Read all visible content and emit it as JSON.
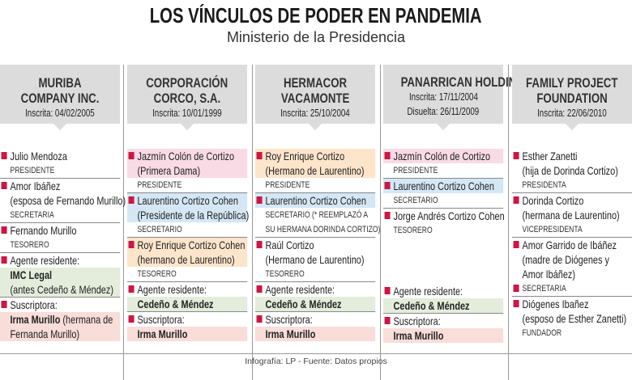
{
  "title": "LOS VÍNCULOS DE PODER EN PANDEMIA",
  "subtitle": "Ministerio de la Presidencia",
  "footer": "Infografía: LP - Fuente: Datos propios",
  "colors": {
    "bullet": "#cc1744",
    "pink": "#f9dbe6",
    "blue": "#d5e7f5",
    "orange": "#fde5cb",
    "green": "#e4ecdb",
    "rose": "#f8ddd9",
    "header": "#dcdcdc"
  },
  "columns": [
    {
      "name": [
        "MURIBA",
        "COMPANY INC."
      ],
      "dates": [
        "Inscrita: 04/02/2005"
      ],
      "lines": [
        {
          "t": "Julio Mendoza",
          "bullet": true
        },
        {
          "t": "PRESIDENTE",
          "role": true,
          "sep": true
        },
        {
          "t": "Amor Ibáñez",
          "bullet": true
        },
        {
          "t": "(esposa de Fernando Murillo)"
        },
        {
          "t": "SECRETARIA",
          "role": true,
          "sep": true
        },
        {
          "t": "Fernando Murillo",
          "bullet": true
        },
        {
          "t": "TESORERO",
          "role": true,
          "sep": true
        },
        {
          "t": "Agente residente:",
          "bullet": true
        },
        {
          "t": "IMC Legal",
          "bold": true,
          "bg": "green"
        },
        {
          "t": "(antes Cedeño & Méndez)",
          "bg": "green",
          "sep": true
        },
        {
          "t": "Suscriptora:",
          "bullet": true
        },
        {
          "t": "Irma Murillo",
          "rest": " (hermana de",
          "bold": true,
          "bg": "rose"
        },
        {
          "t": "Fernanda Murillo)",
          "bg": "rose"
        }
      ]
    },
    {
      "name": [
        "CORPORACIÓN",
        "CORCO, S.A."
      ],
      "dates": [
        "Inscrita: 10/01/1999"
      ],
      "lines": [
        {
          "t": "Jazmín Colón de Cortizo",
          "bullet": true,
          "bg": "pink"
        },
        {
          "t": "(Primera Dama)",
          "bg": "pink"
        },
        {
          "t": "PRESIDENTE",
          "role": true,
          "sep": true
        },
        {
          "t": "Laurentino Cortizo Cohen",
          "bullet": true,
          "bg": "blue"
        },
        {
          "t": "(Presidente de la República)",
          "bg": "blue"
        },
        {
          "t": "SECRETARIO",
          "role": true,
          "sep": true
        },
        {
          "t": "Roy Enrique Cortizo Cohen",
          "bullet": true,
          "bg": "orange"
        },
        {
          "t": "(hermano de Laurentino)",
          "bg": "orange"
        },
        {
          "t": "TESORERO",
          "role": true,
          "sep": true
        },
        {
          "t": "Agente residente:",
          "bullet": true
        },
        {
          "t": "Cedeño & Méndez",
          "bold": true,
          "bg": "green",
          "sep": true
        },
        {
          "t": "Suscriptora:",
          "bullet": true
        },
        {
          "t": "Irma Murillo",
          "bold": true,
          "bg": "rose"
        }
      ]
    },
    {
      "name": [
        "HERMACOR",
        "VACAMONTE"
      ],
      "dates": [
        "Inscrita: 25/10/2004"
      ],
      "lines": [
        {
          "t": "Roy Enrique Cortizo",
          "bullet": true,
          "bg": "orange"
        },
        {
          "t": "(Hermano de Laurentino)",
          "bg": "orange"
        },
        {
          "t": "PRESIDENTE",
          "role": true,
          "sep": true
        },
        {
          "t": "Laurentino Cortizo Cohen",
          "bullet": true,
          "bg": "blue"
        },
        {
          "t": "SECRETARIO (* REEMPLAZÓ A",
          "role": true
        },
        {
          "t": "SU HERMANA DORINDA CORTIZO)",
          "role": true,
          "sep": true
        },
        {
          "t": "Raúl Cortizo",
          "bullet": true
        },
        {
          "t": "(Hermano de Laurentino)"
        },
        {
          "t": "TESORERO",
          "role": true,
          "sep": true
        },
        {
          "t": "Agente residente:",
          "bullet": true
        },
        {
          "t": "Cedeño & Méndez",
          "bold": true,
          "bg": "green",
          "sep": true
        },
        {
          "t": "Suscriptora:",
          "bullet": true
        },
        {
          "t": "Irma Murillo",
          "bold": true,
          "bg": "rose"
        }
      ]
    },
    {
      "name": [
        "PANARRICAN HOLDING"
      ],
      "dates": [
        "Inscrita: 17/11/2004",
        "Disuelta: 26/11/2009"
      ],
      "lines": [
        {
          "t": "Jazmín Colón de Cortizo",
          "bullet": true,
          "bg": "pink"
        },
        {
          "t": "PRESIDENTE",
          "role": true,
          "sep": true
        },
        {
          "t": "Laurentino Cortizo Cohen",
          "bullet": true,
          "bg": "blue"
        },
        {
          "t": "SECRETARIO",
          "role": true,
          "sep": true
        },
        {
          "t": "Jorge Andrés Cortizo Cohen",
          "bullet": true
        },
        {
          "t": "TESORERO",
          "role": true
        },
        {
          "t": "Agente residente:",
          "bullet": true,
          "push": true
        },
        {
          "t": "Cedeño & Méndez",
          "bold": true,
          "bg": "green",
          "sep": true
        },
        {
          "t": "Suscriptora:",
          "bullet": true
        },
        {
          "t": "Irma Murillo",
          "bold": true,
          "bg": "rose"
        }
      ]
    },
    {
      "name": [
        "FAMILY PROJECT",
        "FOUNDATION"
      ],
      "dates": [
        "Inscrita: 22/06/2010"
      ],
      "lines": [
        {
          "t": "Esther Zanetti",
          "bullet": true
        },
        {
          "t": "(hija de Dorinda Cortizo)"
        },
        {
          "t": "PRESIDENTA",
          "role": true,
          "sep": true
        },
        {
          "t": "Dorinda Cortizo",
          "bullet": true
        },
        {
          "t": "(hermana de Laurentino)"
        },
        {
          "t": "VICEPRESIDENTA",
          "role": true,
          "sep": true
        },
        {
          "t": "Amor Garrido de Ibáñez",
          "bullet": true
        },
        {
          "t": "(madre de Diógenes y"
        },
        {
          "t": "Amor Ibáñez)"
        },
        {
          "t": "SECRETARIA",
          "role": true,
          "bullet": true,
          "sep": true
        },
        {
          "t": "Diógenes Ibañez",
          "bullet": true
        },
        {
          "t": "(esposo de Esther Zanetti)"
        },
        {
          "t": "FUNDADOR",
          "role": true
        }
      ]
    }
  ]
}
